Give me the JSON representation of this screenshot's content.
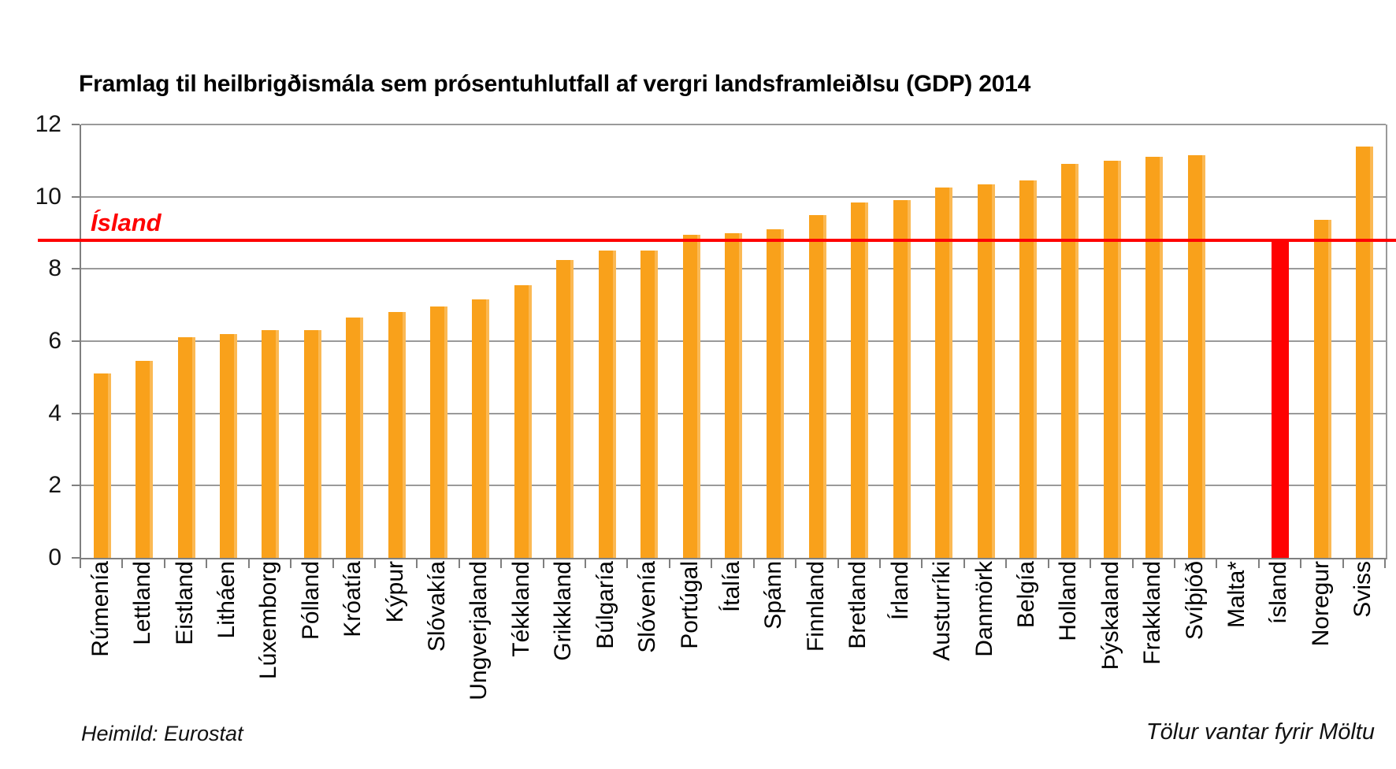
{
  "title": "Framlag til heilbrigðismála sem prósentuhlutfall af vergri landsframleiðlsu (GDP) 2014",
  "footer_left": "Heimild: Eurostat",
  "footer_right": "Tölur vantar fyrir Möltu",
  "colors": {
    "bar": "#f9a11b",
    "bar_edge_highlight": "#fbb954",
    "highlight_bar": "#fe0202",
    "reference_line": "#fe0202",
    "gridline": "#9a9a9a",
    "axis": "#7f7f7f",
    "text": "#000000"
  },
  "chart_data": {
    "type": "bar",
    "title": "Framlag til heilbrigðismála sem prósentuhlutfall af vergri landsframleiðlsu (GDP) 2014",
    "xlabel": "",
    "ylabel": "",
    "ylim": [
      0,
      12
    ],
    "y_ticks": [
      0,
      2,
      4,
      6,
      8,
      10,
      12
    ],
    "grid": true,
    "categories": [
      "Rúmenía",
      "Lettland",
      "Eistland",
      "Litháen",
      "Lúxemborg",
      "Pólland",
      "Króatía",
      "Kýpur",
      "Slóvakía",
      "Ungverjaland",
      "Tékkland",
      "Grikkland",
      "Búlgaría",
      "Slóvenía",
      "Portúgal",
      "Ítalía",
      "Spánn",
      "Finnland",
      "Bretland",
      "Írland",
      "Austurríki",
      "Danmörk",
      "Belgía",
      "Holland",
      "Þýskaland",
      "Frakkland",
      "Svíþjóð",
      "Malta*",
      "ísland",
      "Noregur",
      "Sviss"
    ],
    "values": [
      5.1,
      5.45,
      6.1,
      6.2,
      6.3,
      6.3,
      6.65,
      6.8,
      6.95,
      7.15,
      7.55,
      8.25,
      8.5,
      8.5,
      8.95,
      9.0,
      9.1,
      9.5,
      9.85,
      9.9,
      10.25,
      10.35,
      10.45,
      10.9,
      11.0,
      11.1,
      11.15,
      null,
      8.8,
      9.35,
      11.4
    ],
    "highlight_category": "ísland",
    "missing_category": "Malta*",
    "reference_line": {
      "label": "Ísland",
      "value": 8.8,
      "color": "#fe0202"
    }
  }
}
